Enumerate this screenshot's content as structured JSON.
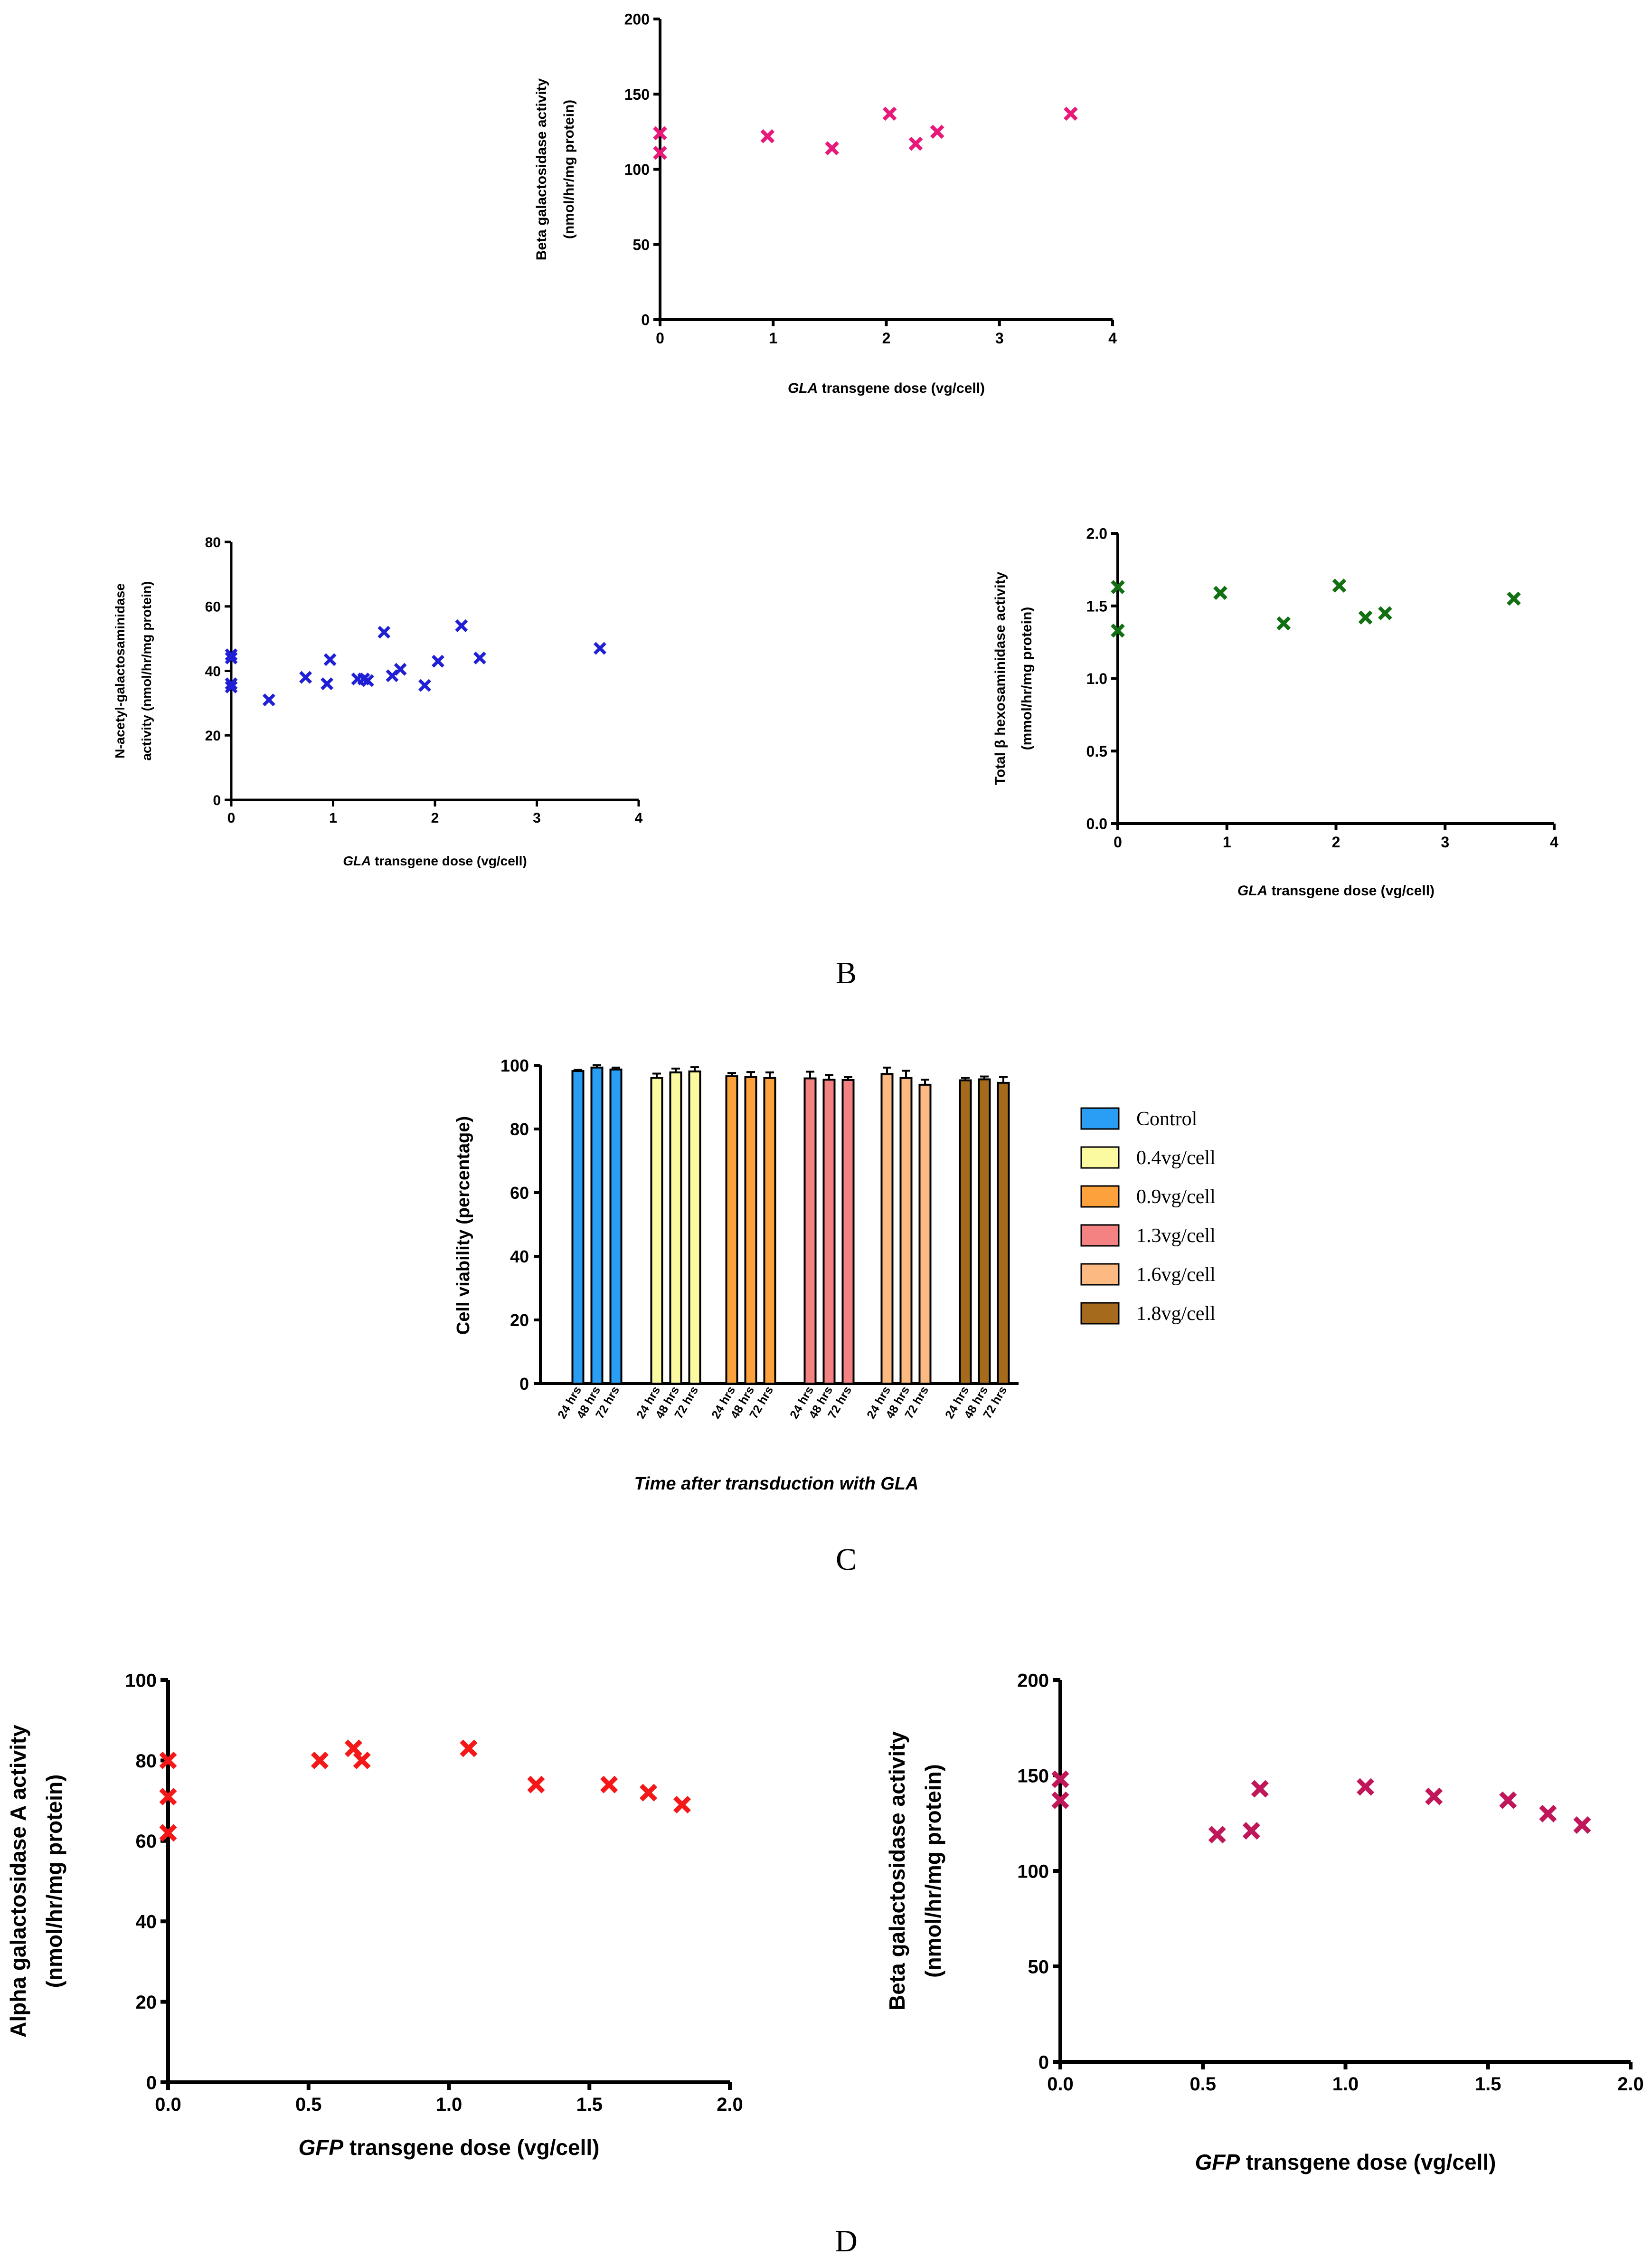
{
  "chart_data": [
    {
      "type": "scatter",
      "panel": "top",
      "marker": "x",
      "color": "#e8197a",
      "xlabel_italic": "GLA",
      "xlabel_rest": " transgene dose (vg/cell)",
      "ylabel_lines": [
        "Beta galactosidase activity",
        "(nmol/hr/mg protein)"
      ],
      "xlim": [
        0,
        4
      ],
      "ylim": [
        0,
        200
      ],
      "xticks": [
        0,
        1,
        2,
        3,
        4
      ],
      "yticks": [
        0,
        50,
        100,
        150,
        200
      ],
      "xtick_labels": [
        "0",
        "1",
        "2",
        "3",
        "4"
      ],
      "ytick_labels": [
        "0",
        "50",
        "100",
        "150",
        "200"
      ],
      "x": [
        0,
        0,
        0.95,
        1.52,
        2.03,
        2.26,
        2.45,
        3.63
      ],
      "y": [
        124,
        111,
        122,
        114,
        137,
        117,
        125,
        137
      ]
    },
    {
      "type": "scatter",
      "panel": "middle-left",
      "marker": "x",
      "color": "#1f1fd6",
      "xlabel_italic": "GLA",
      "xlabel_rest": " transgene dose (vg/cell)",
      "ylabel_lines": [
        "N-acetyl-galactosaminidase",
        "activity (nmol/hr/mg protein)"
      ],
      "xlim": [
        0,
        4
      ],
      "ylim": [
        0,
        80
      ],
      "xticks": [
        0,
        1,
        2,
        3,
        4
      ],
      "yticks": [
        0,
        20,
        40,
        60,
        80
      ],
      "xtick_labels": [
        "0",
        "1",
        "2",
        "3",
        "4"
      ],
      "ytick_labels": [
        "0",
        "20",
        "40",
        "60",
        "80"
      ],
      "x": [
        0,
        0,
        0,
        0,
        0.37,
        0.73,
        0.94,
        0.97,
        1.24,
        1.3,
        1.34,
        1.5,
        1.58,
        1.66,
        1.9,
        2.03,
        2.26,
        2.44,
        3.62
      ],
      "y": [
        45,
        44,
        36,
        35,
        31,
        38,
        36,
        43.5,
        37.5,
        37.5,
        37,
        52,
        38.5,
        40.5,
        35.5,
        43,
        54,
        44,
        47
      ]
    },
    {
      "type": "scatter",
      "panel": "middle-right",
      "marker": "x",
      "color": "#117011",
      "xlabel_italic": "GLA",
      "xlabel_rest": " transgene dose (vg/cell)",
      "ylabel_lines": [
        "Total β hexosaminidase activity",
        "(mmol/hr/mg protein)"
      ],
      "xlim": [
        0,
        4
      ],
      "ylim": [
        0,
        2
      ],
      "xticks": [
        0,
        1,
        2,
        3,
        4
      ],
      "yticks": [
        0,
        0.5,
        1,
        1.5,
        2
      ],
      "xtick_labels": [
        "0",
        "1",
        "2",
        "3",
        "4"
      ],
      "ytick_labels": [
        "0.0",
        "0.5",
        "1.0",
        "1.5",
        "2.0"
      ],
      "x": [
        0,
        0,
        0.94,
        1.52,
        2.03,
        2.27,
        2.45,
        3.63
      ],
      "y": [
        1.63,
        1.33,
        1.59,
        1.38,
        1.64,
        1.42,
        1.45,
        1.55
      ]
    },
    {
      "type": "bar",
      "panel": "C",
      "xlabel": "Time after transduction with GLA",
      "ylabel": "Cell viability (percentage)",
      "ylim": [
        0,
        100
      ],
      "yticks": [
        0,
        20,
        40,
        60,
        80,
        100
      ],
      "ytick_labels": [
        "0",
        "20",
        "40",
        "60",
        "80",
        "100"
      ],
      "categories": [
        "24 hrs",
        "48 hrs",
        "72 hrs"
      ],
      "series": [
        {
          "name": "Control",
          "color": "#2a9df4",
          "values": [
            98.2,
            99.3,
            98.7
          ],
          "errors": [
            0.4,
            0.8,
            0.6
          ]
        },
        {
          "name": "0.4vg/cell",
          "color": "#fbfaa0",
          "values": [
            96.1,
            97.8,
            98.1
          ],
          "errors": [
            1.3,
            1.2,
            1.3
          ]
        },
        {
          "name": "0.9vg/cell",
          "color": "#fca13b",
          "values": [
            96.6,
            96.3,
            96.0
          ],
          "errors": [
            1.0,
            1.6,
            1.8
          ]
        },
        {
          "name": "1.3vg/cell",
          "color": "#f48282",
          "values": [
            95.9,
            95.5,
            95.4
          ],
          "errors": [
            2.1,
            1.5,
            0.9
          ]
        },
        {
          "name": "1.6vg/cell",
          "color": "#fcb982",
          "values": [
            97.3,
            96.0,
            93.9
          ],
          "errors": [
            2.0,
            2.3,
            1.6
          ]
        },
        {
          "name": "1.8vg/cell",
          "color": "#a66a1c",
          "values": [
            95.3,
            95.6,
            94.5
          ],
          "errors": [
            0.8,
            0.9,
            1.9
          ]
        }
      ]
    },
    {
      "type": "scatter",
      "panel": "D-left",
      "marker": "x",
      "color": "#f41818",
      "xlabel_italic": "GFP",
      "xlabel_rest": " transgene dose (vg/cell)",
      "ylabel_lines": [
        "Alpha galactosidase A activity",
        "(nmol/hr/mg protein)"
      ],
      "xlim": [
        0,
        2
      ],
      "ylim": [
        0,
        100
      ],
      "xticks": [
        0,
        0.5,
        1,
        1.5,
        2
      ],
      "yticks": [
        0,
        20,
        40,
        60,
        80,
        100
      ],
      "xtick_labels": [
        "0.0",
        "0.5",
        "1.0",
        "1.5",
        "2.0"
      ],
      "ytick_labels": [
        "0",
        "20",
        "40",
        "60",
        "80",
        "100"
      ],
      "x": [
        0,
        0,
        0,
        0.54,
        0.66,
        0.69,
        1.07,
        1.31,
        1.57,
        1.71,
        1.83
      ],
      "y": [
        80,
        71,
        62,
        80,
        83,
        80,
        83,
        74,
        74,
        72,
        69
      ]
    },
    {
      "type": "scatter",
      "panel": "D-right",
      "marker": "x",
      "color": "#c0165a",
      "xlabel_italic": "GFP",
      "xlabel_rest": " transgene dose (vg/cell)",
      "ylabel_lines": [
        "Beta galactosidase activity",
        "(nmol/hr/mg protein)"
      ],
      "xlim": [
        0,
        2
      ],
      "ylim": [
        0,
        200
      ],
      "xticks": [
        0,
        0.5,
        1,
        1.5,
        2
      ],
      "yticks": [
        0,
        50,
        100,
        150,
        200
      ],
      "xtick_labels": [
        "0.0",
        "0.5",
        "1.0",
        "1.5",
        "2.0"
      ],
      "ytick_labels": [
        "0",
        "50",
        "100",
        "150",
        "200"
      ],
      "x": [
        0,
        0,
        0.55,
        0.67,
        0.7,
        1.07,
        1.31,
        1.57,
        1.71,
        1.83
      ],
      "y": [
        148,
        137,
        119,
        121,
        143,
        144,
        139,
        137,
        130,
        124
      ]
    }
  ],
  "panel_labels": {
    "b": "B",
    "c": "C",
    "d": "D"
  }
}
